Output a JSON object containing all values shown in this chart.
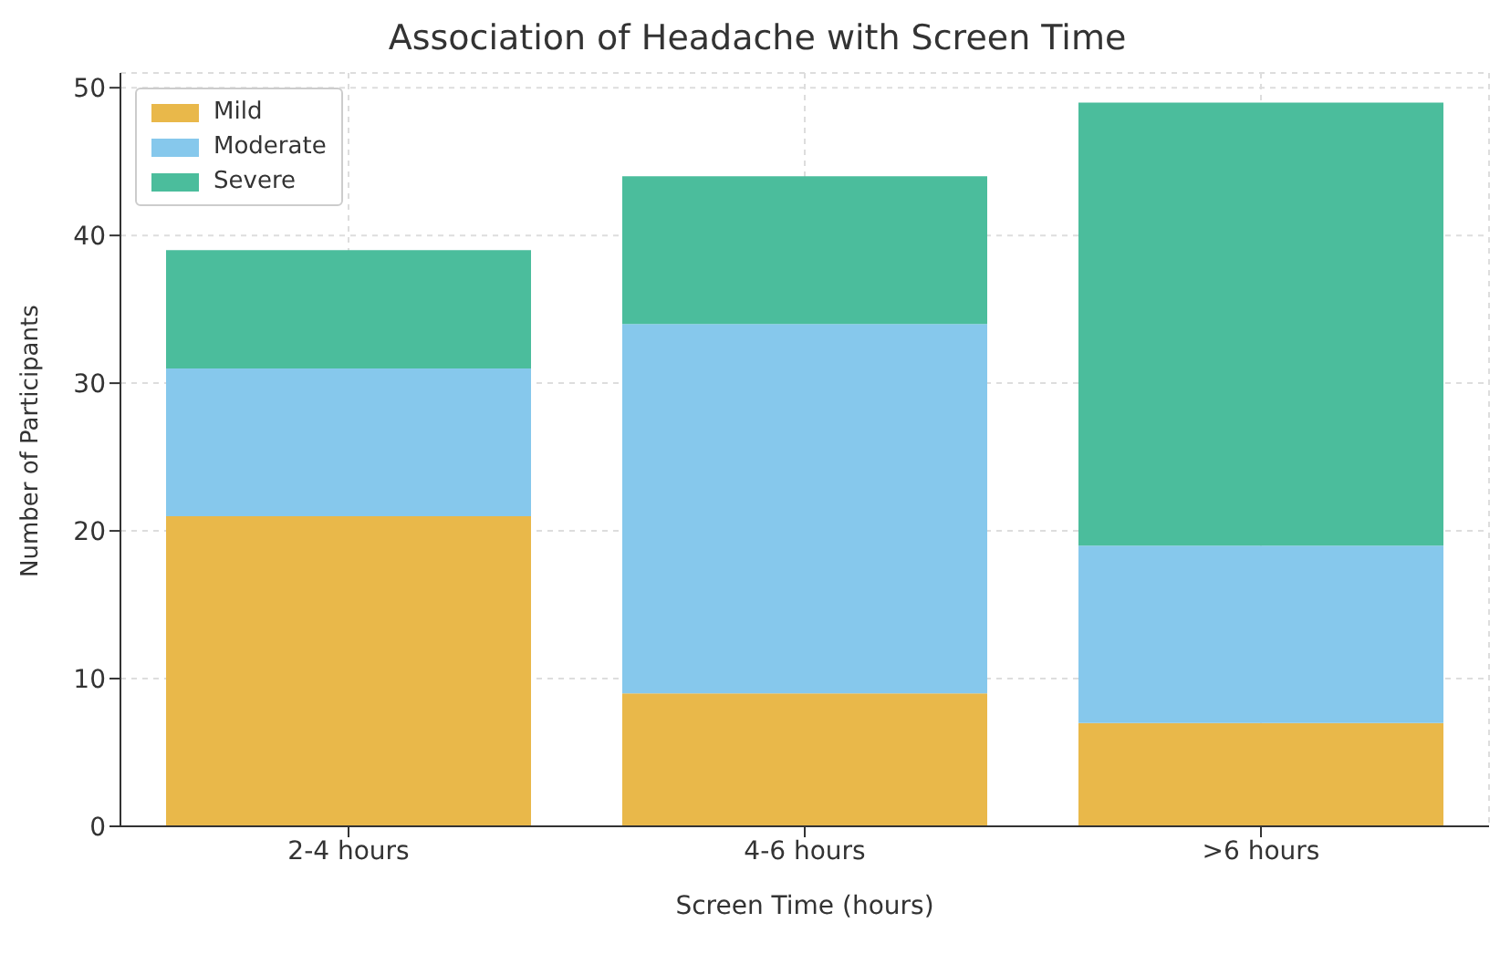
{
  "chart_data": {
    "type": "bar",
    "title": "Association of Headache with Screen Time",
    "xlabel": "Screen Time (hours)",
    "ylabel": "Number of Participants",
    "categories": [
      "2-4 hours",
      "4-6 hours",
      ">6 hours"
    ],
    "stacked": true,
    "series": [
      {
        "name": "Mild",
        "color": "#e9b84a",
        "values": [
          21,
          9,
          7
        ]
      },
      {
        "name": "Moderate",
        "color": "#86c8ec",
        "values": [
          10,
          25,
          12
        ]
      },
      {
        "name": "Severe",
        "color": "#4bbd9c",
        "values": [
          8,
          10,
          30
        ]
      }
    ],
    "ylim": [
      0,
      51
    ],
    "yticks": [
      0,
      10,
      20,
      30,
      40,
      50
    ],
    "grid": true,
    "legend": "top left"
  }
}
